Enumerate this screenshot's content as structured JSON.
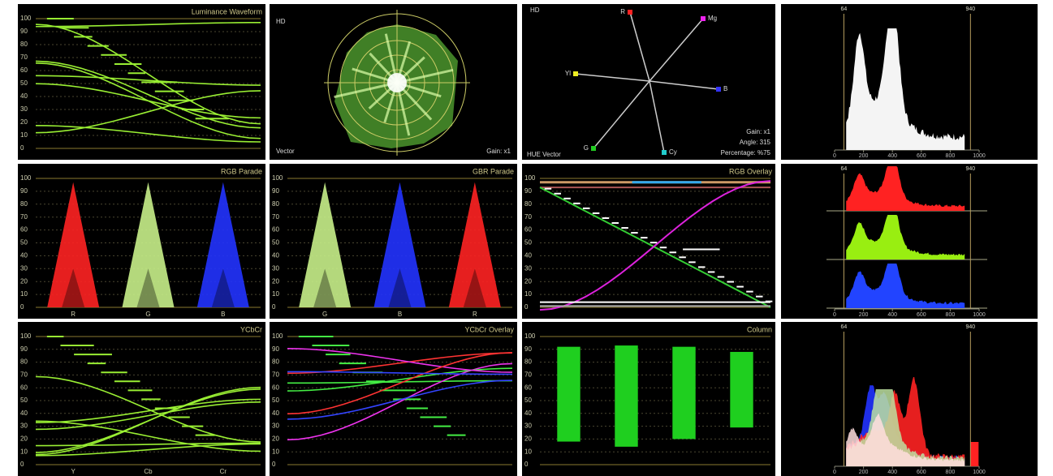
{
  "panels": [
    {
      "title": "Luminance Waveform",
      "ticks": [
        100,
        90,
        80,
        70,
        60,
        50,
        40,
        30,
        20,
        10,
        0
      ]
    },
    {
      "labels": [
        "HD",
        "Vector",
        "Gain: x1"
      ]
    },
    {
      "labels": [
        "HD",
        "HUE Vector",
        "Gain: x1",
        "Angle: 315",
        "Percentage: %75"
      ],
      "vectors": [
        "R",
        "Mg",
        "B",
        "Cy",
        "G",
        "Yl"
      ]
    },
    {
      "markers": [
        64,
        940
      ],
      "xticks": [
        0,
        200,
        400,
        600,
        800,
        1000
      ]
    },
    {
      "title": "RGB Parade",
      "ticks": [
        100,
        90,
        80,
        70,
        60,
        50,
        40,
        30,
        20,
        10,
        0
      ],
      "channels": [
        "R",
        "G",
        "B"
      ]
    },
    {
      "title": "GBR Parade",
      "ticks": [
        100,
        90,
        80,
        70,
        60,
        50,
        40,
        30,
        20,
        10,
        0
      ],
      "channels": [
        "G",
        "B",
        "R"
      ]
    },
    {
      "title": "RGB Overlay",
      "ticks": [
        100,
        90,
        80,
        70,
        60,
        50,
        40,
        30,
        20,
        10,
        0
      ]
    },
    {
      "markers": [
        64,
        940
      ],
      "xticks": [
        0,
        200,
        400,
        600,
        800,
        1000
      ]
    },
    {
      "title": "YCbCr",
      "ticks": [
        100,
        90,
        80,
        70,
        60,
        50,
        40,
        30,
        20,
        10,
        0
      ],
      "channels": [
        "Y",
        "Cb",
        "Cr"
      ]
    },
    {
      "title": "YCbCr Overlay",
      "ticks": [
        100,
        90,
        80,
        70,
        60,
        50,
        40,
        30,
        20,
        10,
        0
      ]
    },
    {
      "title": "Column",
      "ticks": [
        100,
        90,
        80,
        70,
        60,
        50,
        40,
        30,
        20,
        10,
        0
      ],
      "bars": [
        {
          "top": 92,
          "bottom": 18
        },
        {
          "top": 93,
          "bottom": 14
        },
        {
          "top": 92,
          "bottom": 20
        },
        {
          "top": 88,
          "bottom": 29
        }
      ]
    },
    {
      "markers": [
        64,
        940
      ],
      "xticks": [
        0,
        200,
        400,
        600,
        800,
        1000
      ]
    }
  ]
}
